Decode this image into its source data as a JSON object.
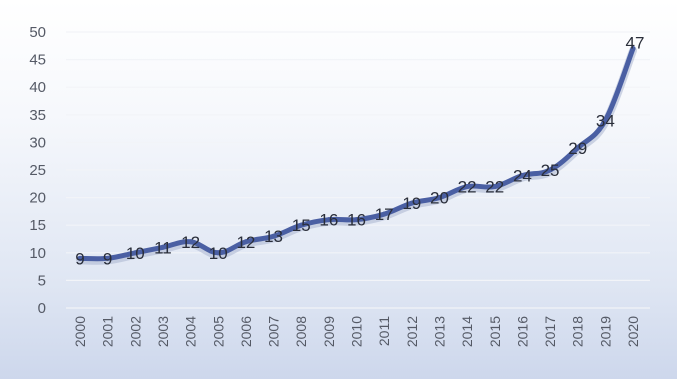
{
  "chart_data": {
    "type": "line",
    "title": "",
    "xlabel": "",
    "ylabel": "",
    "categories": [
      "2000",
      "2001",
      "2002",
      "2003",
      "2004",
      "2005",
      "2006",
      "2007",
      "2008",
      "2009",
      "2010",
      "2011",
      "2012",
      "2013",
      "2014",
      "2015",
      "2016",
      "2017",
      "2018",
      "2019",
      "2020"
    ],
    "series": [
      {
        "values": [
          9,
          9,
          10,
          11,
          12,
          10,
          12,
          13,
          15,
          16,
          16,
          17,
          19,
          20,
          22,
          22,
          24,
          25,
          29,
          34,
          47
        ]
      }
    ],
    "ylim": [
      0,
      50
    ],
    "yticks": [
      0,
      5,
      10,
      15,
      20,
      25,
      30,
      35,
      40,
      45,
      50
    ],
    "grid": true,
    "legend": "none",
    "data_labels": true,
    "colors": {
      "line": "#4a5fa3"
    }
  }
}
